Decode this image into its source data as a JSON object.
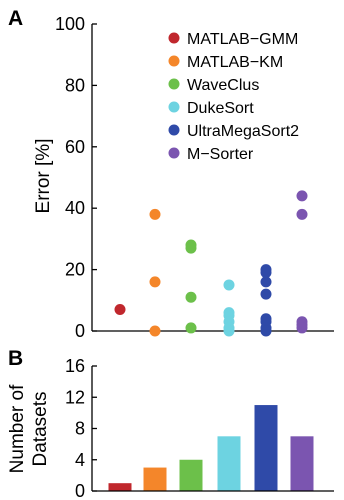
{
  "panel_a": {
    "letter": "A",
    "ylabel": "Error [%]"
  },
  "panel_b": {
    "letter": "B",
    "ylabel_line1": "Number of",
    "ylabel_line2": "Datasets"
  },
  "legend": [
    {
      "label": "MATLAB−GMM",
      "color": "#c0272d"
    },
    {
      "label": "MATLAB−KM",
      "color": "#f4862a"
    },
    {
      "label": "WaveClus",
      "color": "#6cc04a"
    },
    {
      "label": "DukeSort",
      "color": "#6dd3e1"
    },
    {
      "label": "UltraMegaSort2",
      "color": "#2f4aa8"
    },
    {
      "label": "M−Sorter",
      "color": "#7b55b0"
    }
  ],
  "chart_data": [
    {
      "type": "scatter",
      "ylabel": "Error [%]",
      "ylim": [
        0,
        100
      ],
      "yticks": [
        0,
        20,
        40,
        60,
        80,
        100
      ],
      "series": [
        {
          "name": "MATLAB−GMM",
          "color": "#c0272d",
          "values": [
            7
          ]
        },
        {
          "name": "MATLAB−KM",
          "color": "#f4862a",
          "values": [
            38,
            16,
            0
          ]
        },
        {
          "name": "WaveClus",
          "color": "#6cc04a",
          "values": [
            28,
            27,
            11,
            1
          ]
        },
        {
          "name": "DukeSort",
          "color": "#6dd3e1",
          "values": [
            15,
            6,
            5,
            3,
            1,
            0
          ]
        },
        {
          "name": "UltraMegaSort2",
          "color": "#2f4aa8",
          "values": [
            20,
            19,
            16,
            12,
            4,
            3,
            1,
            0
          ]
        },
        {
          "name": "M−Sorter",
          "color": "#7b55b0",
          "values": [
            44,
            38,
            3,
            2,
            1
          ]
        }
      ]
    },
    {
      "type": "bar",
      "ylabel": "Number of Datasets",
      "ylim": [
        0,
        16
      ],
      "yticks": [
        0,
        4,
        8,
        12,
        16
      ],
      "categories": [
        "MATLAB−GMM",
        "MATLAB−KM",
        "WaveClus",
        "DukeSort",
        "UltraMegaSort2",
        "M−Sorter"
      ],
      "values": [
        1,
        3,
        4,
        7,
        11,
        7
      ],
      "colors": [
        "#c0272d",
        "#f4862a",
        "#6cc04a",
        "#6dd3e1",
        "#2f4aa8",
        "#7b55b0"
      ]
    }
  ]
}
